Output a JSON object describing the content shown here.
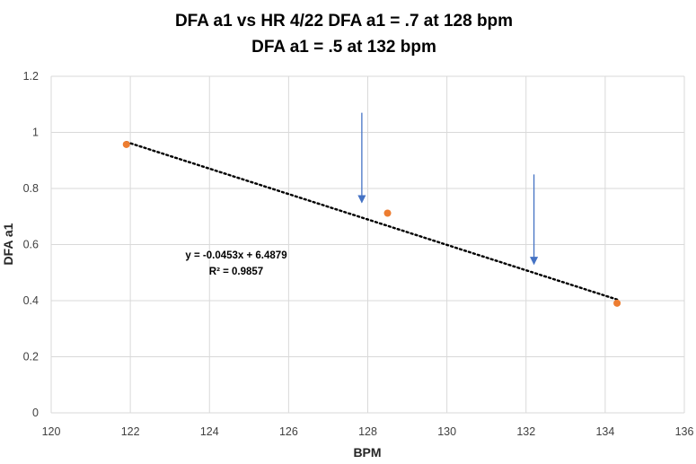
{
  "chart_data": {
    "type": "scatter",
    "title_lines": [
      "DFA a1 vs HR  4/22   DFA a1 = .7 at 128 bpm",
      "DFA a1 = .5 at 132 bpm"
    ],
    "xlabel": "BPM",
    "ylabel": "DFA a1",
    "xlim": [
      120,
      136
    ],
    "ylim": [
      0,
      1.2
    ],
    "x_ticks": [
      120,
      122,
      124,
      126,
      128,
      130,
      132,
      134,
      136
    ],
    "y_ticks": [
      0,
      0.2,
      0.4,
      0.6,
      0.8,
      1,
      1.2
    ],
    "x_tick_labels": [
      "120",
      "122",
      "124",
      "126",
      "128",
      "130",
      "132",
      "134",
      "136"
    ],
    "y_tick_labels": [
      "0",
      "0.2",
      "0.4",
      "0.6",
      "0.8",
      "1",
      "1.2"
    ],
    "grid": true,
    "points": [
      {
        "x": 121.9,
        "y": 0.957
      },
      {
        "x": 128.5,
        "y": 0.712
      },
      {
        "x": 134.3,
        "y": 0.391
      }
    ],
    "point_color": "#ED7D31",
    "trendline": {
      "type": "linear",
      "slope": -0.0453,
      "intercept": 6.4879,
      "x_range": [
        121.9,
        134.3
      ],
      "color": "#000000",
      "style": "dotted"
    },
    "annotations": {
      "equation": "y = -0.0453x + 6.4879",
      "r_squared": "R² = 0.9857"
    },
    "arrows": [
      {
        "x": 127.85,
        "y_from": 1.07,
        "y_to": 0.75
      },
      {
        "x": 132.2,
        "y_from": 0.85,
        "y_to": 0.53
      }
    ],
    "arrow_color": "#4472C4"
  }
}
